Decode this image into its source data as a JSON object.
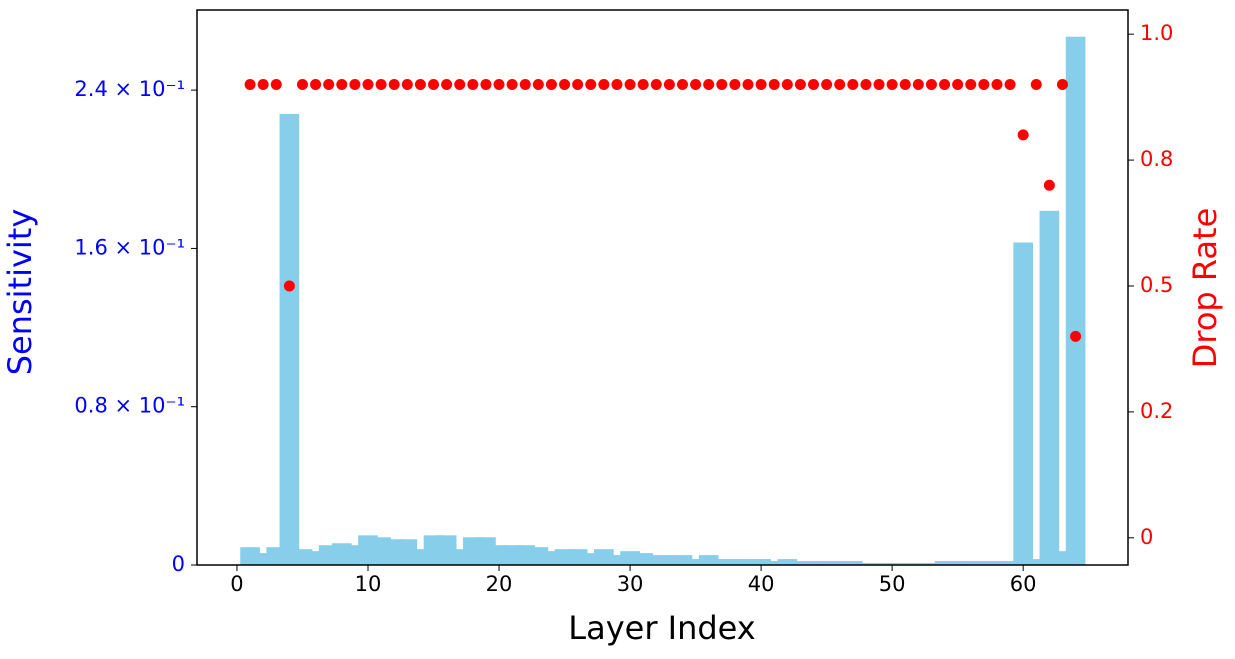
{
  "chart_data": {
    "type": "bar",
    "x_label": "Layer Index",
    "y_label": "Sensitivity",
    "y2_label": "Drop Rate",
    "x": [
      1,
      2,
      3,
      4,
      5,
      6,
      7,
      8,
      9,
      10,
      11,
      12,
      13,
      14,
      15,
      16,
      17,
      18,
      19,
      20,
      21,
      22,
      23,
      24,
      25,
      26,
      27,
      28,
      29,
      30,
      31,
      32,
      33,
      34,
      35,
      36,
      37,
      38,
      39,
      40,
      41,
      42,
      43,
      44,
      45,
      46,
      47,
      48,
      49,
      50,
      51,
      52,
      53,
      54,
      55,
      56,
      57,
      58,
      59,
      60,
      61,
      62,
      63,
      64
    ],
    "series": [
      {
        "name": "Sensitivity",
        "type": "bar",
        "axis": "y",
        "color": "#87ceeb",
        "values": [
          0.009,
          0.006,
          0.009,
          0.228,
          0.008,
          0.007,
          0.01,
          0.011,
          0.01,
          0.015,
          0.014,
          0.013,
          0.013,
          0.008,
          0.015,
          0.015,
          0.008,
          0.014,
          0.014,
          0.01,
          0.01,
          0.01,
          0.009,
          0.007,
          0.008,
          0.008,
          0.006,
          0.008,
          0.005,
          0.007,
          0.006,
          0.005,
          0.005,
          0.005,
          0.003,
          0.005,
          0.003,
          0.003,
          0.003,
          0.003,
          0.002,
          0.003,
          0.002,
          0.002,
          0.002,
          0.002,
          0.002,
          0.001,
          0.001,
          0.001,
          0.001,
          0.001,
          0.001,
          0.002,
          0.002,
          0.002,
          0.002,
          0.002,
          0.002,
          0.163,
          0.003,
          0.179,
          0.007,
          0.267
        ]
      },
      {
        "name": "Drop Rate",
        "type": "scatter",
        "axis": "y2",
        "color": "#ff0000",
        "values": [
          0.9,
          0.9,
          0.9,
          0.5,
          0.9,
          0.9,
          0.9,
          0.9,
          0.9,
          0.9,
          0.9,
          0.9,
          0.9,
          0.9,
          0.9,
          0.9,
          0.9,
          0.9,
          0.9,
          0.9,
          0.9,
          0.9,
          0.9,
          0.9,
          0.9,
          0.9,
          0.9,
          0.9,
          0.9,
          0.9,
          0.9,
          0.9,
          0.9,
          0.9,
          0.9,
          0.9,
          0.9,
          0.9,
          0.9,
          0.9,
          0.9,
          0.9,
          0.9,
          0.9,
          0.9,
          0.9,
          0.9,
          0.9,
          0.9,
          0.9,
          0.9,
          0.9,
          0.9,
          0.9,
          0.9,
          0.9,
          0.9,
          0.9,
          0.9,
          0.8,
          0.9,
          0.7,
          0.9,
          0.4
        ]
      }
    ],
    "xlim": [
      -3.05,
      68
    ],
    "xticks": [
      0,
      10,
      20,
      30,
      40,
      50,
      60
    ],
    "ylim": [
      0,
      0.2805
    ],
    "yticks": [
      0,
      {
        "value": 0.08,
        "label": "0.8 × 10⁻¹"
      },
      {
        "value": 0.16,
        "label": "1.6 × 10⁻¹"
      },
      {
        "value": 0.24,
        "label": "2.4 × 10⁻¹"
      }
    ],
    "y2lim": [
      -0.054,
      1.048
    ],
    "y2ticks": [
      0,
      {
        "value": 0.25,
        "label": "0.2"
      },
      0.5,
      {
        "value": 0.75,
        "label": "0.8"
      },
      {
        "value": 1.0,
        "label": "1.0"
      }
    ],
    "y_tick_color": "#0000ff",
    "y2_tick_color": "#ff0000"
  }
}
